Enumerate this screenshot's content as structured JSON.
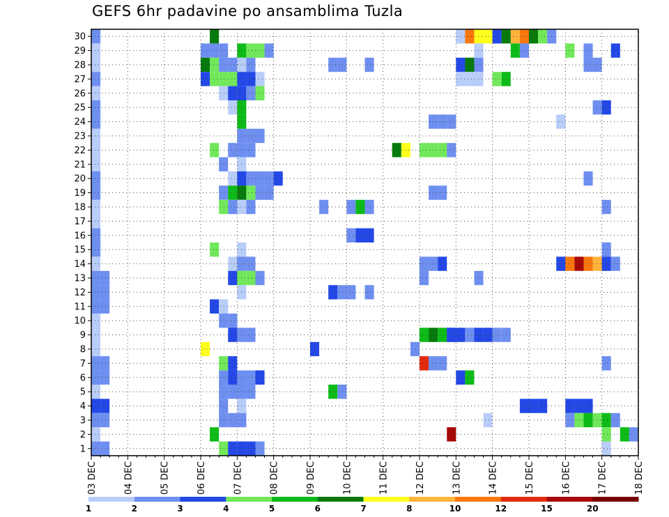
{
  "chart_data": {
    "type": "heatmap",
    "title": "GEFS 6hr padavine po ansamblima Tuzla",
    "xlabel": "",
    "ylabel": "",
    "x_ticks": [
      "03 DEC",
      "04 DEC",
      "05 DEC",
      "06 DEC",
      "07 DEC",
      "08 DEC",
      "09 DEC",
      "10 DEC",
      "11 DEC",
      "12 DEC",
      "13 DEC",
      "14 DEC",
      "15 DEC",
      "16 DEC",
      "17 DEC",
      "18 DEC"
    ],
    "y_ticks": [
      1,
      2,
      3,
      4,
      5,
      6,
      7,
      8,
      9,
      10,
      11,
      12,
      13,
      14,
      15,
      16,
      17,
      18,
      19,
      20,
      21,
      22,
      23,
      24,
      25,
      26,
      27,
      28,
      29,
      30
    ],
    "x_unit": "6-hour step after 03 DEC 00z",
    "colorbar": {
      "levels": [
        "1",
        "2",
        "3",
        "4",
        "5",
        "6",
        "7",
        "8",
        "10",
        "12",
        "15",
        "20"
      ],
      "colors": [
        "#b9cdf9",
        "#6e8ff0",
        "#2348e6",
        "#70e85a",
        "#0dbb18",
        "#067a0c",
        "#ffff1e",
        "#ffb43c",
        "#f8780e",
        "#e32a0d",
        "#a80808",
        "#780000"
      ]
    },
    "cells": [
      [
        0,
        30,
        1
      ],
      [
        0,
        29,
        0
      ],
      [
        0,
        28,
        0
      ],
      [
        0,
        27,
        1
      ],
      [
        0,
        26,
        0
      ],
      [
        0,
        25,
        1
      ],
      [
        0,
        24,
        1
      ],
      [
        0,
        23,
        0
      ],
      [
        0,
        22,
        0
      ],
      [
        0,
        21,
        0
      ],
      [
        0,
        20,
        1
      ],
      [
        0,
        19,
        1
      ],
      [
        0,
        18,
        0
      ],
      [
        0,
        17,
        0
      ],
      [
        0,
        16,
        1
      ],
      [
        0,
        15,
        1
      ],
      [
        0,
        14,
        0
      ],
      [
        0,
        13,
        1
      ],
      [
        0,
        12,
        1
      ],
      [
        0,
        11,
        1
      ],
      [
        0,
        10,
        0
      ],
      [
        0,
        9,
        0
      ],
      [
        0,
        8,
        0
      ],
      [
        0,
        7,
        1
      ],
      [
        0,
        6,
        1
      ],
      [
        0,
        5,
        0
      ],
      [
        0,
        4,
        2
      ],
      [
        0,
        3,
        1
      ],
      [
        0,
        2,
        0
      ],
      [
        0,
        1,
        1
      ],
      [
        1,
        13,
        1
      ],
      [
        1,
        12,
        1
      ],
      [
        1,
        11,
        1
      ],
      [
        1,
        7,
        1
      ],
      [
        1,
        6,
        1
      ],
      [
        1,
        4,
        2
      ],
      [
        1,
        3,
        1
      ],
      [
        1,
        1,
        1
      ],
      [
        12,
        29,
        1
      ],
      [
        12,
        28,
        5
      ],
      [
        12,
        27,
        2
      ],
      [
        12,
        8,
        6
      ],
      [
        13,
        30,
        5
      ],
      [
        13,
        29,
        1
      ],
      [
        13,
        28,
        3
      ],
      [
        13,
        27,
        3
      ],
      [
        13,
        22,
        3
      ],
      [
        13,
        15,
        3
      ],
      [
        13,
        11,
        2
      ],
      [
        13,
        2,
        4
      ],
      [
        14,
        29,
        1
      ],
      [
        14,
        28,
        1
      ],
      [
        14,
        27,
        3
      ],
      [
        14,
        26,
        0
      ],
      [
        14,
        21,
        1
      ],
      [
        14,
        19,
        1
      ],
      [
        14,
        18,
        3
      ],
      [
        14,
        11,
        0
      ],
      [
        14,
        10,
        1
      ],
      [
        14,
        7,
        3
      ],
      [
        14,
        6,
        1
      ],
      [
        14,
        5,
        1
      ],
      [
        14,
        4,
        1
      ],
      [
        14,
        3,
        1
      ],
      [
        14,
        1,
        3
      ],
      [
        15,
        28,
        1
      ],
      [
        15,
        27,
        3
      ],
      [
        15,
        26,
        2
      ],
      [
        15,
        25,
        0
      ],
      [
        15,
        22,
        1
      ],
      [
        15,
        20,
        0
      ],
      [
        15,
        19,
        4
      ],
      [
        15,
        18,
        1
      ],
      [
        15,
        14,
        0
      ],
      [
        15,
        13,
        2
      ],
      [
        15,
        10,
        1
      ],
      [
        15,
        9,
        2
      ],
      [
        15,
        7,
        2
      ],
      [
        15,
        6,
        2
      ],
      [
        15,
        5,
        1
      ],
      [
        15,
        3,
        1
      ],
      [
        15,
        1,
        2
      ],
      [
        16,
        29,
        4
      ],
      [
        16,
        28,
        0
      ],
      [
        16,
        27,
        2
      ],
      [
        16,
        26,
        2
      ],
      [
        16,
        25,
        4
      ],
      [
        16,
        24,
        4
      ],
      [
        16,
        23,
        1
      ],
      [
        16,
        22,
        1
      ],
      [
        16,
        21,
        0
      ],
      [
        16,
        20,
        2
      ],
      [
        16,
        19,
        5
      ],
      [
        16,
        18,
        0
      ],
      [
        16,
        15,
        0
      ],
      [
        16,
        14,
        1
      ],
      [
        16,
        13,
        3
      ],
      [
        16,
        12,
        0
      ],
      [
        16,
        9,
        1
      ],
      [
        16,
        6,
        1
      ],
      [
        16,
        5,
        1
      ],
      [
        16,
        4,
        0
      ],
      [
        16,
        3,
        1
      ],
      [
        16,
        1,
        2
      ],
      [
        17,
        29,
        3
      ],
      [
        17,
        28,
        1
      ],
      [
        17,
        27,
        2
      ],
      [
        17,
        26,
        1
      ],
      [
        17,
        23,
        1
      ],
      [
        17,
        22,
        1
      ],
      [
        17,
        20,
        1
      ],
      [
        17,
        19,
        3
      ],
      [
        17,
        18,
        1
      ],
      [
        17,
        14,
        1
      ],
      [
        17,
        13,
        3
      ],
      [
        17,
        9,
        1
      ],
      [
        17,
        6,
        1
      ],
      [
        17,
        5,
        1
      ],
      [
        17,
        1,
        2
      ],
      [
        18,
        29,
        3
      ],
      [
        18,
        27,
        0
      ],
      [
        18,
        26,
        3
      ],
      [
        18,
        23,
        1
      ],
      [
        18,
        20,
        1
      ],
      [
        18,
        19,
        1
      ],
      [
        18,
        13,
        1
      ],
      [
        18,
        6,
        2
      ],
      [
        18,
        1,
        1
      ],
      [
        19,
        29,
        1
      ],
      [
        19,
        20,
        1
      ],
      [
        19,
        19,
        1
      ],
      [
        20,
        20,
        2
      ],
      [
        24,
        8,
        2
      ],
      [
        25,
        18,
        1
      ],
      [
        26,
        28,
        1
      ],
      [
        26,
        12,
        2
      ],
      [
        26,
        5,
        4
      ],
      [
        27,
        28,
        1
      ],
      [
        27,
        12,
        1
      ],
      [
        27,
        5,
        1
      ],
      [
        28,
        18,
        1
      ],
      [
        28,
        16,
        1
      ],
      [
        28,
        12,
        1
      ],
      [
        29,
        18,
        4
      ],
      [
        29,
        16,
        2
      ],
      [
        30,
        28,
        1
      ],
      [
        30,
        18,
        1
      ],
      [
        30,
        16,
        2
      ],
      [
        30,
        12,
        1
      ],
      [
        33,
        22,
        5
      ],
      [
        34,
        22,
        6
      ],
      [
        35,
        8,
        1
      ],
      [
        36,
        22,
        3
      ],
      [
        36,
        14,
        1
      ],
      [
        36,
        13,
        1
      ],
      [
        36,
        9,
        4
      ],
      [
        36,
        7,
        9
      ],
      [
        37,
        24,
        1
      ],
      [
        37,
        22,
        3
      ],
      [
        37,
        19,
        1
      ],
      [
        37,
        14,
        1
      ],
      [
        37,
        9,
        5
      ],
      [
        37,
        7,
        1
      ],
      [
        38,
        24,
        1
      ],
      [
        38,
        22,
        3
      ],
      [
        38,
        19,
        1
      ],
      [
        38,
        14,
        2
      ],
      [
        38,
        9,
        4
      ],
      [
        38,
        7,
        1
      ],
      [
        39,
        24,
        1
      ],
      [
        39,
        22,
        1
      ],
      [
        39,
        9,
        2
      ],
      [
        39,
        2,
        10
      ],
      [
        40,
        9,
        2
      ],
      [
        40,
        6,
        2
      ],
      [
        41,
        9,
        1
      ],
      [
        41,
        6,
        4
      ],
      [
        39,
        9,
        2
      ],
      [
        40,
        30,
        0
      ],
      [
        40,
        28,
        2
      ],
      [
        40,
        27,
        0
      ],
      [
        41,
        30,
        8
      ],
      [
        41,
        28,
        5
      ],
      [
        41,
        27,
        0
      ],
      [
        42,
        30,
        6
      ],
      [
        42,
        29,
        0
      ],
      [
        42,
        28,
        1
      ],
      [
        42,
        27,
        0
      ],
      [
        42,
        13,
        1
      ],
      [
        42,
        9,
        2
      ],
      [
        43,
        30,
        6
      ],
      [
        43,
        9,
        2
      ],
      [
        43,
        3,
        0
      ],
      [
        44,
        30,
        2
      ],
      [
        44,
        27,
        3
      ],
      [
        44,
        9,
        1
      ],
      [
        45,
        30,
        5
      ],
      [
        45,
        27,
        4
      ],
      [
        45,
        9,
        1
      ],
      [
        46,
        30,
        7
      ],
      [
        46,
        29,
        4
      ],
      [
        47,
        30,
        8
      ],
      [
        47,
        29,
        1
      ],
      [
        47,
        4,
        2
      ],
      [
        48,
        30,
        5
      ],
      [
        48,
        4,
        2
      ],
      [
        49,
        30,
        3
      ],
      [
        49,
        4,
        2
      ],
      [
        50,
        30,
        1
      ],
      [
        51,
        24,
        0
      ],
      [
        51,
        14,
        2
      ],
      [
        52,
        29,
        3
      ],
      [
        52,
        14,
        8
      ],
      [
        52,
        4,
        2
      ],
      [
        52,
        3,
        1
      ],
      [
        53,
        14,
        10
      ],
      [
        53,
        4,
        2
      ],
      [
        53,
        3,
        3
      ],
      [
        54,
        29,
        1
      ],
      [
        54,
        28,
        1
      ],
      [
        54,
        20,
        1
      ],
      [
        54,
        14,
        8
      ],
      [
        54,
        4,
        2
      ],
      [
        54,
        3,
        4
      ],
      [
        55,
        28,
        1
      ],
      [
        55,
        25,
        1
      ],
      [
        55,
        14,
        7
      ],
      [
        55,
        3,
        3
      ],
      [
        56,
        25,
        2
      ],
      [
        56,
        18,
        1
      ],
      [
        56,
        15,
        1
      ],
      [
        56,
        14,
        2
      ],
      [
        56,
        7,
        1
      ],
      [
        56,
        3,
        4
      ],
      [
        56,
        2,
        3
      ],
      [
        56,
        1,
        0
      ],
      [
        57,
        29,
        2
      ],
      [
        57,
        14,
        1
      ],
      [
        57,
        3,
        1
      ],
      [
        58,
        2,
        4
      ],
      [
        59,
        2,
        1
      ],
      [
        60,
        29,
        1
      ],
      [
        61,
        13,
        1
      ],
      [
        62,
        29,
        1
      ],
      [
        63,
        0,
        4
      ],
      [
        64,
        29,
        1
      ],
      [
        64,
        0,
        1
      ],
      [
        65,
        17,
        4
      ],
      [
        65,
        13,
        7
      ],
      [
        65,
        1,
        2
      ],
      [
        66,
        17,
        8
      ],
      [
        66,
        7,
        2
      ],
      [
        66,
        1,
        1
      ]
    ]
  }
}
